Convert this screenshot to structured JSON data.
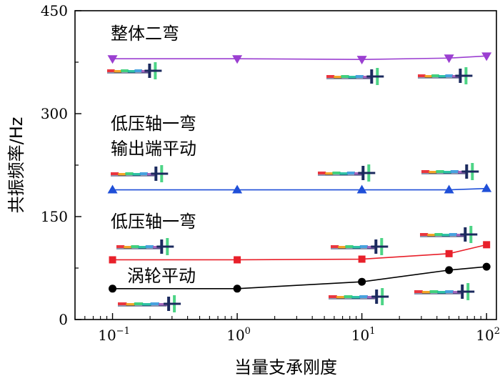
{
  "chart_data": {
    "type": "line",
    "xscale": "log",
    "xlabel": "当量支承刚度",
    "ylabel": "共振频率/Hz",
    "xlim": [
      0.05,
      120
    ],
    "ylim": [
      0,
      450
    ],
    "yticks": [
      0,
      150,
      300,
      450
    ],
    "xticks": [
      {
        "value": 0.1,
        "base": "10",
        "exp": "−1"
      },
      {
        "value": 1,
        "base": "10",
        "exp": "0"
      },
      {
        "value": 10,
        "base": "10",
        "exp": "1"
      },
      {
        "value": 100,
        "base": "10",
        "exp": "2"
      }
    ],
    "x": [
      0.1,
      1,
      10,
      50,
      100
    ],
    "series": [
      {
        "name": "整体二弯",
        "color": "#9b3fd1",
        "marker": "triangle-down",
        "values": [
          380,
          380,
          379,
          381,
          384
        ]
      },
      {
        "name": "低压轴一弯输出端平动",
        "color": "#1f4fd8",
        "marker": "triangle-up",
        "values": [
          189,
          189,
          189,
          189,
          191
        ]
      },
      {
        "name": "低压轴一弯",
        "color": "#e8202a",
        "marker": "square",
        "values": [
          87,
          87,
          88,
          96,
          109
        ]
      },
      {
        "name": "涡轮平动",
        "color": "#000000",
        "marker": "circle",
        "values": [
          45,
          45,
          55,
          72,
          77
        ]
      }
    ],
    "annotations": [
      {
        "key": "overall",
        "text": "整体二弯"
      },
      {
        "key": "lp1",
        "text": "低压轴一弯"
      },
      {
        "key": "lp2",
        "text": "输出端平动"
      },
      {
        "key": "lpshaft",
        "text": "低压轴一弯"
      },
      {
        "key": "turbine",
        "text": "涡轮平动"
      }
    ]
  }
}
